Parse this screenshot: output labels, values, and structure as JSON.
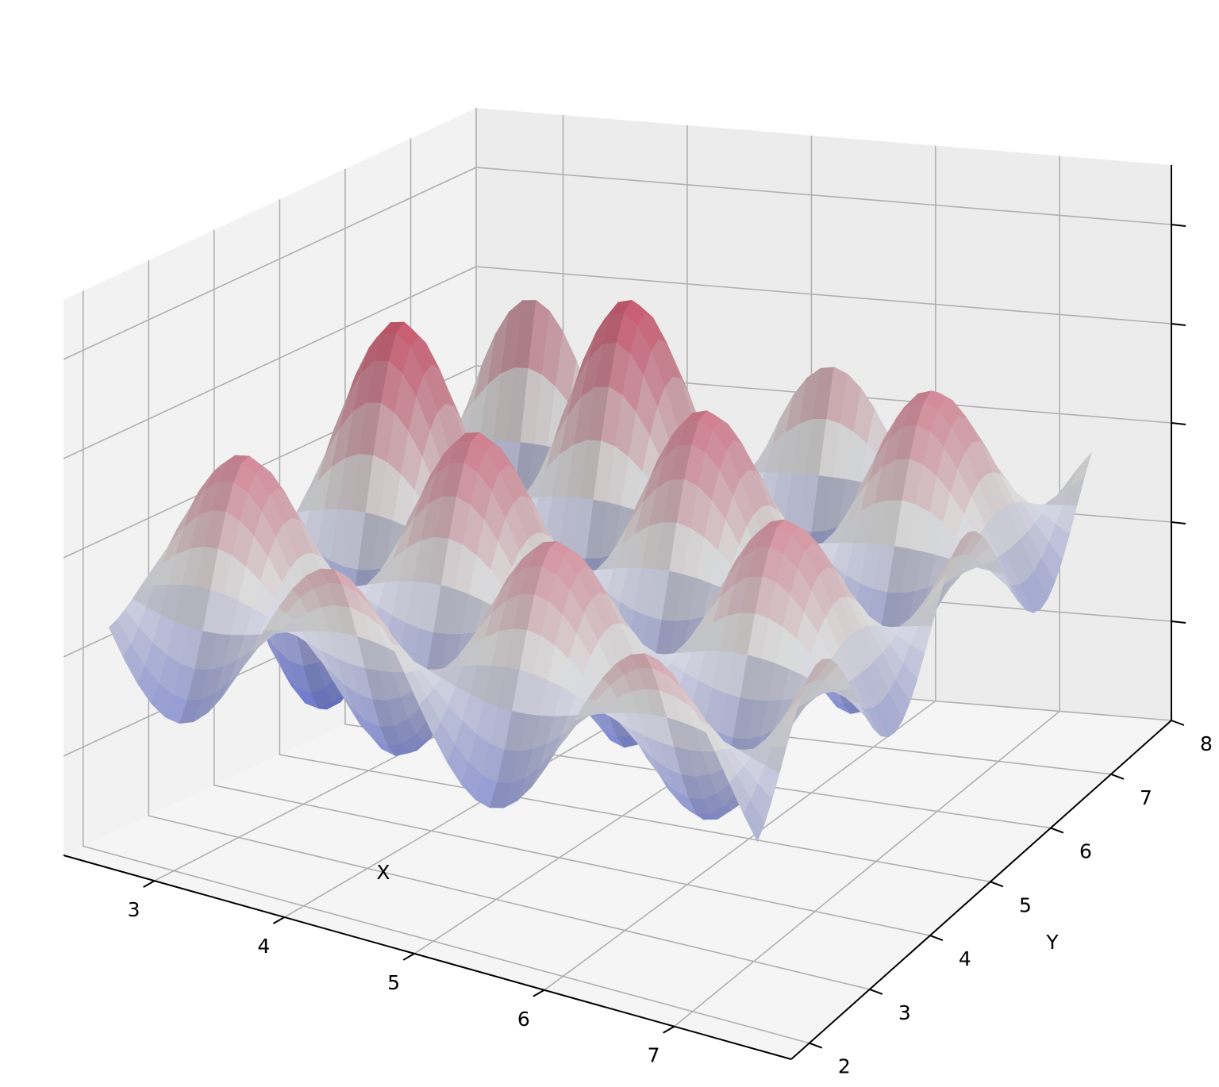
{
  "chart_data": {
    "type": "surface3d",
    "title": "",
    "xlabel": "X",
    "ylabel": "Y",
    "zlabel": "",
    "xlim": [
      2.3,
      7.9
    ],
    "ylim": [
      1.7,
      8.0
    ],
    "zlim": [
      -1.0,
      1.25
    ],
    "x_ticks": [
      3,
      4,
      5,
      6,
      7
    ],
    "y_ticks": [
      2,
      3,
      4,
      5,
      6,
      7,
      8
    ],
    "z_ticks_count": 5,
    "z_ticks_labeled": false,
    "colormap": "coolwarm",
    "colormap_colors": [
      "#3b4cc0",
      "#dddddd",
      "#b40426"
    ],
    "grid": true,
    "surface": {
      "x_range": [
        2.5,
        7.5
      ],
      "y_range": [
        2.0,
        7.5
      ],
      "approx_function": "z = sin(2.6x) * sin(2.6y) * (0.45 + 0.55 * (1 - (x-2.5)/5.2) * ((y-2.0)/5.5))",
      "z_min": -0.92,
      "z_max": 1.14
    }
  }
}
